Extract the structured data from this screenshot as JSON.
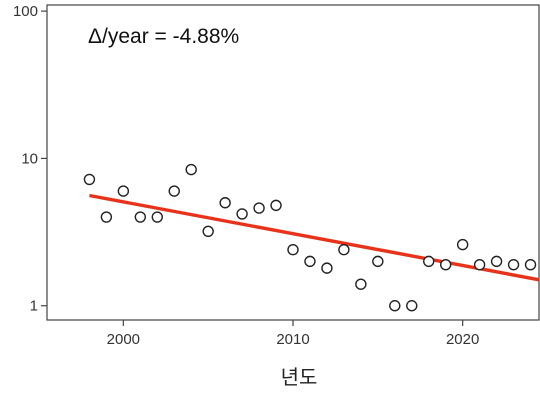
{
  "chart_data": {
    "type": "scatter",
    "title": "",
    "xlabel": "년도",
    "ylabel": "",
    "annotation": "Δ/year = -4.88%",
    "yscale": "log",
    "xlim": [
      1995.5,
      2024.5
    ],
    "ylim": [
      0.8,
      110
    ],
    "x_ticks": [
      2000,
      2010,
      2020
    ],
    "y_ticks": [
      1,
      10,
      100
    ],
    "grid": false,
    "legend": "none",
    "colors": {
      "trend": "#e8321a",
      "point_fill": "#ffffff",
      "point_stroke": "#222222",
      "axis": "#444444"
    },
    "points": {
      "x": [
        1998,
        1999,
        2000,
        2001,
        2002,
        2003,
        2004,
        2005,
        2006,
        2007,
        2008,
        2009,
        2010,
        2011,
        2012,
        2013,
        2014,
        2015,
        2016,
        2017,
        2018,
        2019,
        2020,
        2021,
        2022,
        2023,
        2024
      ],
      "y": [
        7.2,
        4.0,
        6.0,
        4.0,
        4.0,
        6.0,
        8.4,
        3.2,
        5.0,
        4.2,
        4.6,
        4.8,
        2.4,
        2.0,
        1.8,
        2.4,
        1.4,
        2.0,
        1.0,
        1.0,
        2.0,
        1.9,
        2.6,
        1.9,
        2.0,
        1.9,
        1.9
      ]
    },
    "trend": {
      "x": [
        1998,
        2024.5
      ],
      "y": [
        5.6,
        1.5
      ]
    }
  }
}
